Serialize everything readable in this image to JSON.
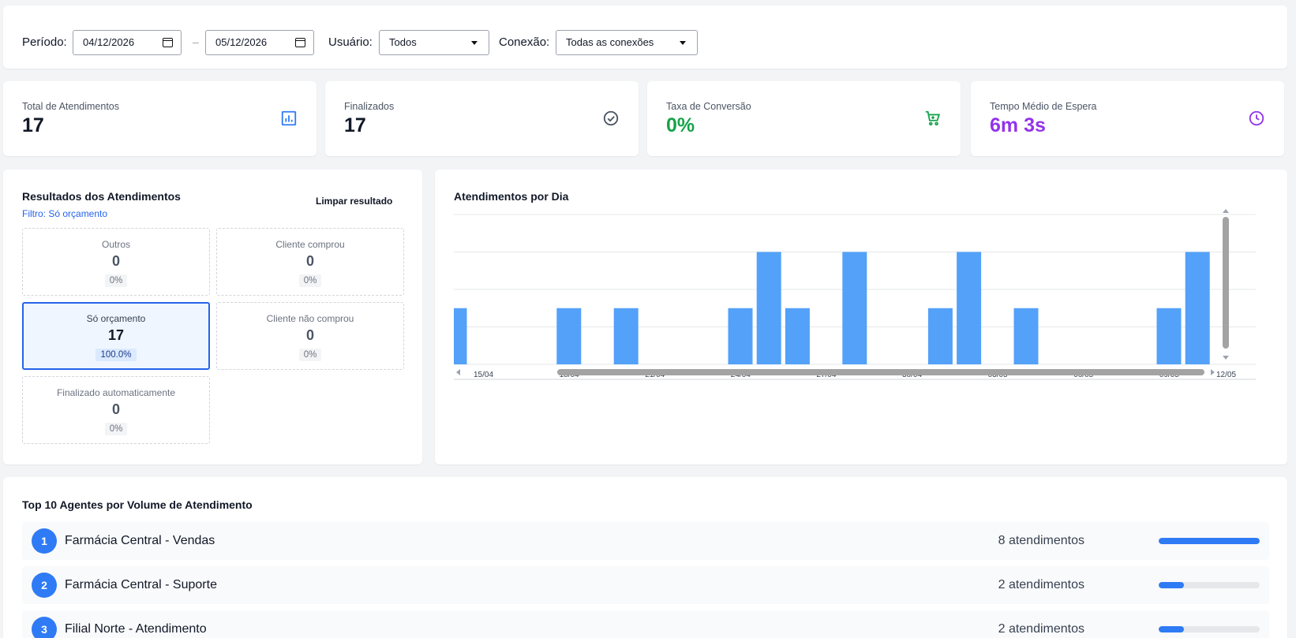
{
  "filters": {
    "period_label": "Período:",
    "date_start": "04/12/2026",
    "date_separator": "–",
    "date_end": "05/12/2026",
    "user_label": "Usuário:",
    "user_value": "Todos",
    "connection_label": "Conexão:",
    "connection_value": "Todas as conexões"
  },
  "stats": [
    {
      "label": "Total de Atendimentos",
      "value": "17",
      "icon": "bar-chart-icon",
      "color": "#111827",
      "icon_color": "#2f7bf5"
    },
    {
      "label": "Finalizados",
      "value": "17",
      "icon": "check-circle-icon",
      "color": "#111827",
      "icon_color": "#4b5563"
    },
    {
      "label": "Taxa de Conversão",
      "value": "0%",
      "icon": "cart-icon",
      "color": "#16a34a",
      "icon_color": "#16a34a"
    },
    {
      "label": "Tempo Médio de Espera",
      "value": "6m 3s",
      "icon": "clock-icon",
      "color": "#9333ea",
      "icon_color": "#9333ea"
    }
  ],
  "results": {
    "title": "Resultados dos Atendimentos",
    "clear_label": "Limpar resultado",
    "filter_text": "Filtro: Só orçamento",
    "items": [
      {
        "label": "Outros",
        "value": "0",
        "percent": "0%",
        "selected": false
      },
      {
        "label": "Cliente comprou",
        "value": "0",
        "percent": "0%",
        "selected": false
      },
      {
        "label": "Só orçamento",
        "value": "17",
        "percent": "100.0%",
        "selected": true
      },
      {
        "label": "Cliente não comprou",
        "value": "0",
        "percent": "0%",
        "selected": false
      },
      {
        "label": "Finalizado automaticamente",
        "value": "0",
        "percent": "0%",
        "selected": false
      }
    ]
  },
  "chart": {
    "title": "Atendimentos por Dia"
  },
  "chart_data": {
    "type": "bar",
    "title": "Atendimentos por Dia",
    "xlabel": "",
    "ylabel": "",
    "ylim": [
      0,
      4
    ],
    "grid": true,
    "categories": [
      "15/04",
      "16/04",
      "17/04",
      "18/04",
      "19/04",
      "20/04",
      "21/04",
      "22/04",
      "23/04",
      "24/04",
      "25/04",
      "26/04",
      "27/04",
      "28/04",
      "29/04",
      "30/04",
      "01/05",
      "02/05",
      "03/05",
      "04/05",
      "05/05",
      "06/05",
      "07/05",
      "08/05",
      "09/05",
      "10/05",
      "11/05",
      "12/05"
    ],
    "tick_labels": [
      "15/04",
      "18/04",
      "21/04",
      "24/04",
      "27/04",
      "30/04",
      "03/05",
      "06/05",
      "09/05",
      "12/05"
    ],
    "values": [
      1.5,
      0,
      0,
      0,
      1.5,
      0,
      1.5,
      0,
      0,
      0,
      1.5,
      3,
      1.5,
      0,
      3,
      0,
      0,
      1.5,
      3,
      0,
      1.5,
      0,
      0,
      0,
      0,
      1.5,
      3,
      0
    ],
    "bar_color": "#53a1f9"
  },
  "agents": {
    "title": "Top 10 Agentes por Volume de Atendimento",
    "items": [
      {
        "rank": "1",
        "name": "Farmácia Central - Vendas",
        "count": "8 atendimentos",
        "share": 1.0
      },
      {
        "rank": "2",
        "name": "Farmácia Central - Suporte",
        "count": "2 atendimentos",
        "share": 0.25
      },
      {
        "rank": "3",
        "name": "Filial Norte - Atendimento",
        "count": "2 atendimentos",
        "share": 0.25
      }
    ]
  }
}
